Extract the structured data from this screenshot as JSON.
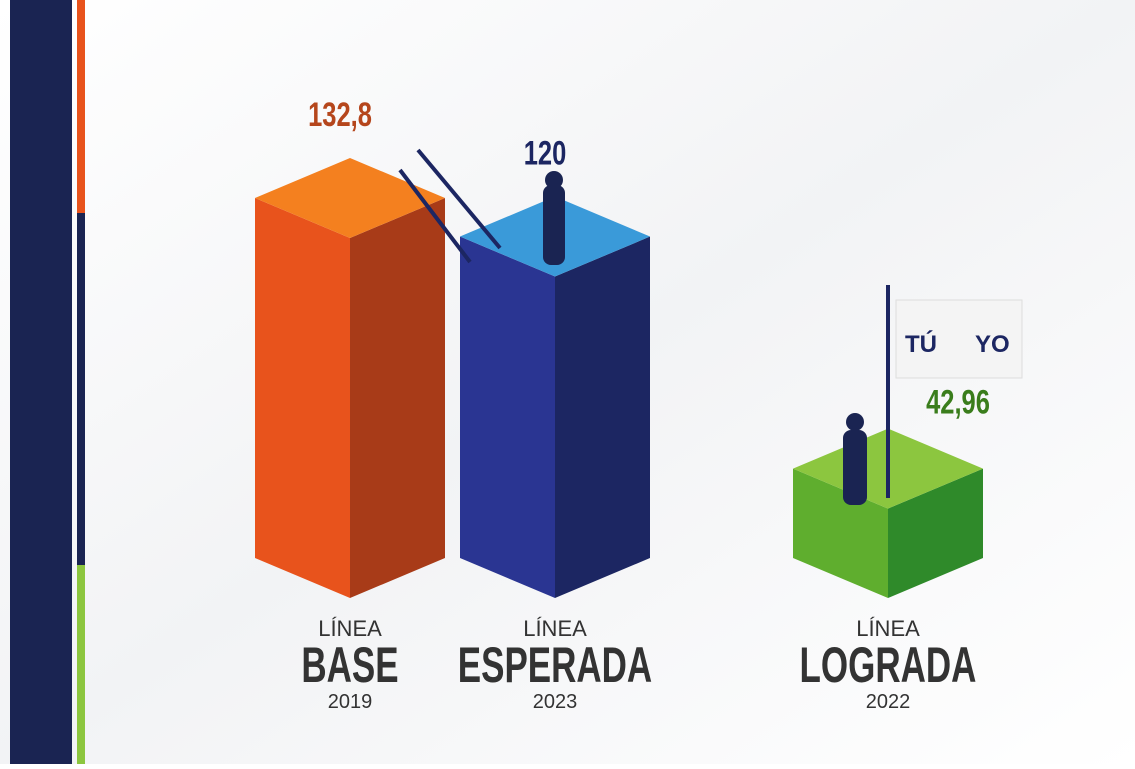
{
  "chart_data": {
    "type": "bar3d",
    "categories": [
      "BASE",
      "ESPERADA",
      "LOGRADA"
    ],
    "category_prefix": [
      "LÍNEA",
      "LÍNEA",
      "LÍNEA"
    ],
    "category_years": [
      "2019",
      "2023",
      "2022"
    ],
    "values": [
      132.8,
      120,
      42.96
    ],
    "value_labels": [
      "132,8",
      "120",
      "42,96"
    ],
    "colors": [
      "#e8531c",
      "#2a3592",
      "#5fae2e"
    ],
    "side_colors": [
      "#a83b18",
      "#1c2662",
      "#2f8a2a"
    ],
    "top_colors": [
      "#f4801f",
      "#3a9ad9",
      "#8cc63f"
    ],
    "label_colors": [
      "#b5461c",
      "#1c2662",
      "#3a7d1c"
    ],
    "logo": [
      "TÚ",
      "YO"
    ]
  }
}
